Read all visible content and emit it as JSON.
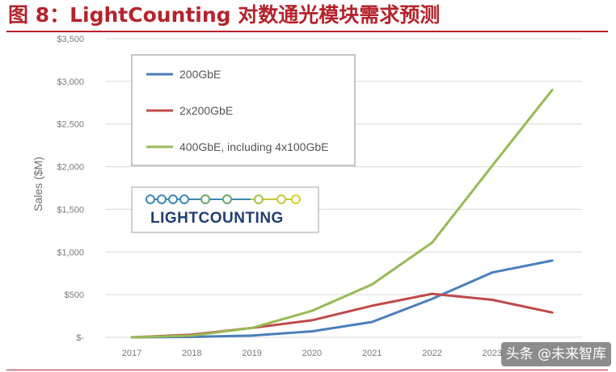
{
  "header": {
    "title": "图 8：LightCounting 对数通光模块需求预测"
  },
  "watermark": "头条 @未来智库",
  "logo": {
    "text": "LIGHTCOUNTING"
  },
  "chart_data": {
    "type": "line",
    "title": "",
    "xlabel": "",
    "ylabel": "Sales ($M)",
    "x": [
      "2017",
      "2018",
      "2019",
      "2020",
      "2021",
      "2022",
      "2023",
      "2024"
    ],
    "x_tick_labels": [
      "2017",
      "2018",
      "2019",
      "2020",
      "2021",
      "2022",
      "2023",
      ""
    ],
    "ylim": [
      0,
      3500
    ],
    "y_ticks": [
      0,
      500,
      1000,
      1500,
      2000,
      2500,
      3000,
      3500
    ],
    "y_tick_labels": [
      "$-",
      "$500",
      "$1,000",
      "$1,500",
      "$2,000",
      "$2,500",
      "$3,000",
      "$3,500"
    ],
    "grid": true,
    "legend_position": "top-left",
    "series": [
      {
        "name": "200GbE",
        "color": "#4a7ebb",
        "values": [
          0,
          5,
          20,
          70,
          180,
          450,
          760,
          900
        ]
      },
      {
        "name": "2x200GbE",
        "color": "#be4b48",
        "values": [
          0,
          30,
          110,
          200,
          370,
          510,
          440,
          290
        ]
      },
      {
        "name": "400GbE, including 4x100GbE",
        "color": "#98b954",
        "values": [
          0,
          20,
          110,
          310,
          620,
          1110,
          2010,
          2900
        ]
      }
    ]
  }
}
